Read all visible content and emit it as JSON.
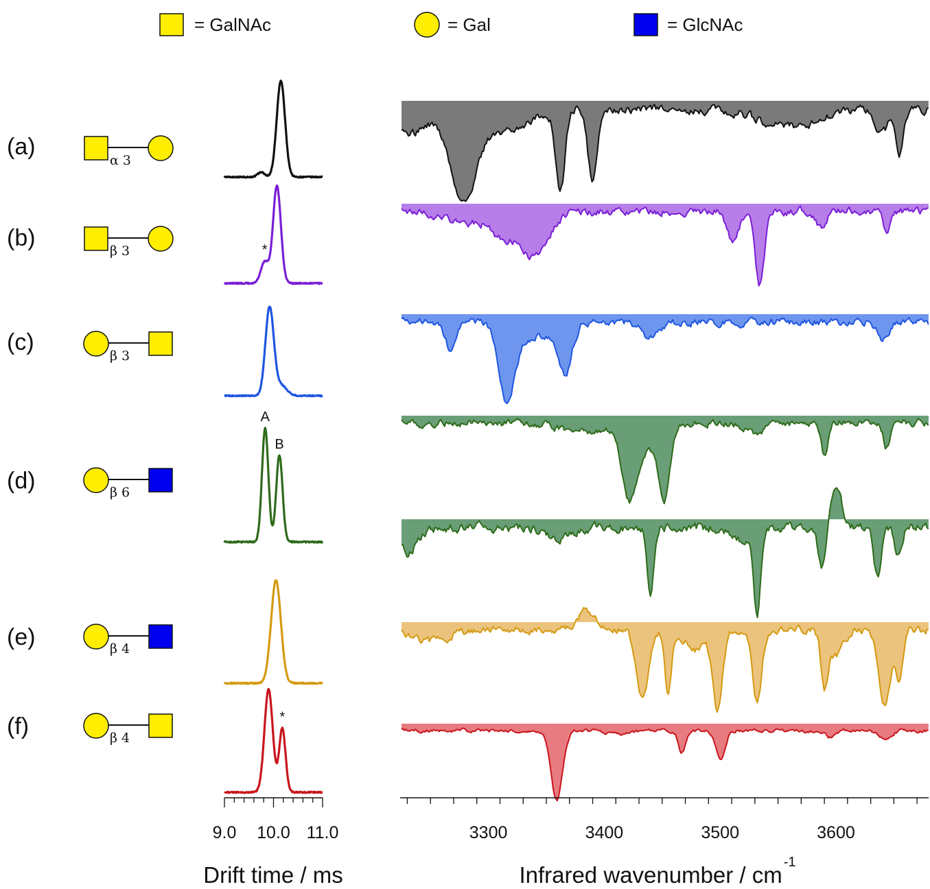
{
  "legend": [
    {
      "shape": "square",
      "color": "#ffee00",
      "label": "= GalNAc"
    },
    {
      "shape": "circle",
      "color": "#ffee00",
      "label": "= Gal"
    },
    {
      "shape": "square",
      "color": "#0000ee",
      "label": "= GlcNAc"
    }
  ],
  "rows": [
    {
      "label": "(a)",
      "glycan": {
        "left": "square",
        "left_color": "#ffee00",
        "right": "circle",
        "right_color": "#ffee00",
        "linkage": "α 3"
      }
    },
    {
      "label": "(b)",
      "glycan": {
        "left": "square",
        "left_color": "#ffee00",
        "right": "circle",
        "right_color": "#ffee00",
        "linkage": "β 3"
      }
    },
    {
      "label": "(c)",
      "glycan": {
        "left": "circle",
        "left_color": "#ffee00",
        "right": "square",
        "right_color": "#ffee00",
        "linkage": "β 3"
      }
    },
    {
      "label": "(d)",
      "glycan": {
        "left": "circle",
        "left_color": "#ffee00",
        "right": "square",
        "right_color": "#0000ee",
        "linkage": "β 6"
      }
    },
    {
      "label": "(e)",
      "glycan": {
        "left": "circle",
        "left_color": "#ffee00",
        "right": "square",
        "right_color": "#0000ee",
        "linkage": "β 4"
      }
    },
    {
      "label": "(f)",
      "glycan": {
        "left": "circle",
        "left_color": "#ffee00",
        "right": "square",
        "right_color": "#ffee00",
        "linkage": "β 4"
      }
    }
  ],
  "chart_data": [
    {
      "type": "line",
      "xlabel": "Drift time / ms",
      "xlim": [
        9.0,
        11.0
      ],
      "xticks": [
        "9.0",
        "10.0",
        "11.0"
      ],
      "series": [
        {
          "row": "(a)",
          "color": "#111111",
          "peaks": [
            {
              "x": 10.15,
              "height": 1.0,
              "width": 0.085
            },
            {
              "x": 9.75,
              "height": 0.05,
              "width": 0.07
            }
          ],
          "markers": []
        },
        {
          "row": "(b)",
          "color": "#7a1fd6",
          "peaks": [
            {
              "x": 10.07,
              "height": 1.0,
              "width": 0.08
            },
            {
              "x": 9.82,
              "height": 0.22,
              "width": 0.08
            }
          ],
          "markers": [
            {
              "text": "*",
              "x": 9.82
            }
          ]
        },
        {
          "row": "(c)",
          "color": "#1f56e0",
          "peaks": [
            {
              "x": 9.92,
              "height": 1.0,
              "width": 0.085
            },
            {
              "x": 10.15,
              "height": 0.12,
              "width": 0.12
            }
          ],
          "markers": []
        },
        {
          "row": "(d)",
          "color": "#2e6b1a",
          "peaks": [
            {
              "x": 9.83,
              "height": 1.0,
              "width": 0.065
            },
            {
              "x": 10.12,
              "height": 0.76,
              "width": 0.065
            }
          ],
          "markers": [
            {
              "text": "A",
              "x": 9.83
            },
            {
              "text": "B",
              "x": 10.12
            }
          ]
        },
        {
          "row": "(e)",
          "color": "#d49a12",
          "peaks": [
            {
              "x": 10.05,
              "height": 1.0,
              "width": 0.1
            }
          ],
          "markers": []
        },
        {
          "row": "(f)",
          "color": "#c8161d",
          "peaks": [
            {
              "x": 9.9,
              "height": 1.0,
              "width": 0.085
            },
            {
              "x": 10.18,
              "height": 0.62,
              "width": 0.065
            }
          ],
          "markers": [
            {
              "text": "*",
              "x": 10.18
            }
          ]
        }
      ]
    },
    {
      "type": "area",
      "xlabel": "Infrared wavenumber / cm",
      "xlabel_sup": "-1",
      "xlim": [
        3225,
        3680
      ],
      "xticks": [
        "3300",
        "3400",
        "3500",
        "3600"
      ],
      "spectra": [
        {
          "row": "(a)",
          "color": "#111111",
          "fill": "#7a7a7a",
          "noise": 0.05,
          "bands": [
            {
              "x": 3278,
              "depth": 1.0,
              "width": 11
            },
            {
              "x": 3362,
              "depth": 0.95,
              "width": 4
            },
            {
              "x": 3390,
              "depth": 0.85,
              "width": 4
            },
            {
              "x": 3230,
              "depth": 0.3,
              "width": 15
            },
            {
              "x": 3310,
              "depth": 0.25,
              "width": 22
            },
            {
              "x": 3560,
              "depth": 0.2,
              "width": 25
            },
            {
              "x": 3655,
              "depth": 0.5,
              "width": 3
            },
            {
              "x": 3640,
              "depth": 0.25,
              "width": 6
            }
          ]
        },
        {
          "row": "(b)",
          "color": "#7a1fd6",
          "fill": "#b77de8",
          "noise": 0.05,
          "bands": [
            {
              "x": 3340,
              "depth": 0.6,
              "width": 12
            },
            {
              "x": 3313,
              "depth": 0.3,
              "width": 10
            },
            {
              "x": 3534,
              "depth": 1.0,
              "width": 4
            },
            {
              "x": 3511,
              "depth": 0.4,
              "width": 5
            },
            {
              "x": 3644,
              "depth": 0.3,
              "width": 3
            },
            {
              "x": 3587,
              "depth": 0.2,
              "width": 4
            },
            {
              "x": 3280,
              "depth": 0.15,
              "width": 20
            }
          ]
        },
        {
          "row": "(c)",
          "color": "#1f56e0",
          "fill": "#6f96ee",
          "noise": 0.05,
          "bands": [
            {
              "x": 3316,
              "depth": 1.0,
              "width": 7
            },
            {
              "x": 3366,
              "depth": 0.65,
              "width": 6
            },
            {
              "x": 3267,
              "depth": 0.35,
              "width": 4
            },
            {
              "x": 3340,
              "depth": 0.2,
              "width": 14
            },
            {
              "x": 3440,
              "depth": 0.2,
              "width": 8
            },
            {
              "x": 3640,
              "depth": 0.2,
              "width": 5
            }
          ]
        },
        {
          "row": "(d)",
          "color": "#2e6b1a",
          "fill": "#6a9e77",
          "noise": 0.05,
          "bands": [
            {
              "x": 3421,
              "depth": 0.85,
              "width": 6
            },
            {
              "x": 3452,
              "depth": 1.0,
              "width": 5
            },
            {
              "x": 3432,
              "depth": 0.4,
              "width": 12
            },
            {
              "x": 3590,
              "depth": 0.45,
              "width": 3
            },
            {
              "x": 3644,
              "depth": 0.35,
              "width": 3
            },
            {
              "x": 3530,
              "depth": 0.15,
              "width": 8
            },
            {
              "x": 3380,
              "depth": 0.12,
              "width": 20
            }
          ]
        },
        {
          "row": "(d)",
          "color": "#2e6b1a",
          "fill": "#6a9e77",
          "noise": 0.055,
          "bands": [
            {
              "x": 3532,
              "depth": 1.0,
              "width": 3
            },
            {
              "x": 3440,
              "depth": 0.75,
              "width": 3
            },
            {
              "x": 3588,
              "depth": 0.55,
              "width": 3
            },
            {
              "x": 3636,
              "depth": 0.6,
              "width": 3
            },
            {
              "x": 3654,
              "depth": 0.35,
              "width": 3
            },
            {
              "x": 3600,
              "depth": -0.45,
              "width": 5
            },
            {
              "x": 3520,
              "depth": 0.15,
              "width": 10
            },
            {
              "x": 3230,
              "depth": 0.3,
              "width": 8
            },
            {
              "x": 3360,
              "depth": 0.15,
              "width": 10
            }
          ]
        },
        {
          "row": "(e)",
          "color": "#d49a12",
          "fill": "#ebc37c",
          "noise": 0.05,
          "bands": [
            {
              "x": 3433,
              "depth": 0.9,
              "width": 5
            },
            {
              "x": 3455,
              "depth": 0.8,
              "width": 3
            },
            {
              "x": 3498,
              "depth": 1.0,
              "width": 4
            },
            {
              "x": 3532,
              "depth": 0.95,
              "width": 4
            },
            {
              "x": 3642,
              "depth": 1.0,
              "width": 5
            },
            {
              "x": 3655,
              "depth": 0.65,
              "width": 3
            },
            {
              "x": 3590,
              "depth": 0.7,
              "width": 3
            },
            {
              "x": 3600,
              "depth": 0.35,
              "width": 6
            },
            {
              "x": 3385,
              "depth": -0.25,
              "width": 8
            },
            {
              "x": 3480,
              "depth": 0.25,
              "width": 10
            },
            {
              "x": 3250,
              "depth": 0.15,
              "width": 15
            }
          ]
        },
        {
          "row": "(f)",
          "color": "#c8161d",
          "fill": "#e77b80",
          "noise": 0.025,
          "bands": [
            {
              "x": 3359,
              "depth": 1.0,
              "width": 5
            },
            {
              "x": 3500,
              "depth": 0.4,
              "width": 4
            },
            {
              "x": 3467,
              "depth": 0.3,
              "width": 3
            },
            {
              "x": 3595,
              "depth": 0.1,
              "width": 4
            },
            {
              "x": 3642,
              "depth": 0.1,
              "width": 5
            },
            {
              "x": 3410,
              "depth": 0.05,
              "width": 10
            }
          ]
        }
      ]
    }
  ]
}
